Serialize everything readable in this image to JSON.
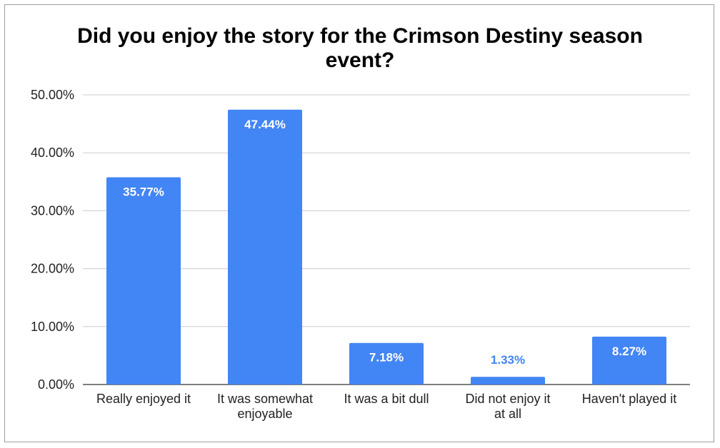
{
  "chart_data": {
    "type": "bar",
    "title_lines": [
      "Did you enjoy the story for the Crimson Destiny season",
      "event?"
    ],
    "categories": [
      [
        "Really enjoyed it"
      ],
      [
        "It was somewhat",
        "enjoyable"
      ],
      [
        "It was a bit dull"
      ],
      [
        "Did not enjoy it",
        "at all"
      ],
      [
        "Haven't played it"
      ]
    ],
    "values": [
      35.77,
      47.44,
      7.18,
      1.33,
      8.27
    ],
    "data_labels": [
      "35.77%",
      "47.44%",
      "7.18%",
      "1.33%",
      "8.27%"
    ],
    "yticks": [
      0,
      10,
      20,
      30,
      40,
      50
    ],
    "ytick_labels": [
      "0.00%",
      "10.00%",
      "20.00%",
      "30.00%",
      "40.00%",
      "50.00%"
    ],
    "ylim": [
      0,
      50
    ],
    "grid": true,
    "legend": "none",
    "colors": {
      "bar": "#4285f4",
      "label_inside": "#ffffff",
      "label_outside": "#4285f4",
      "grid": "#cccccc",
      "axis": "#333333"
    }
  }
}
